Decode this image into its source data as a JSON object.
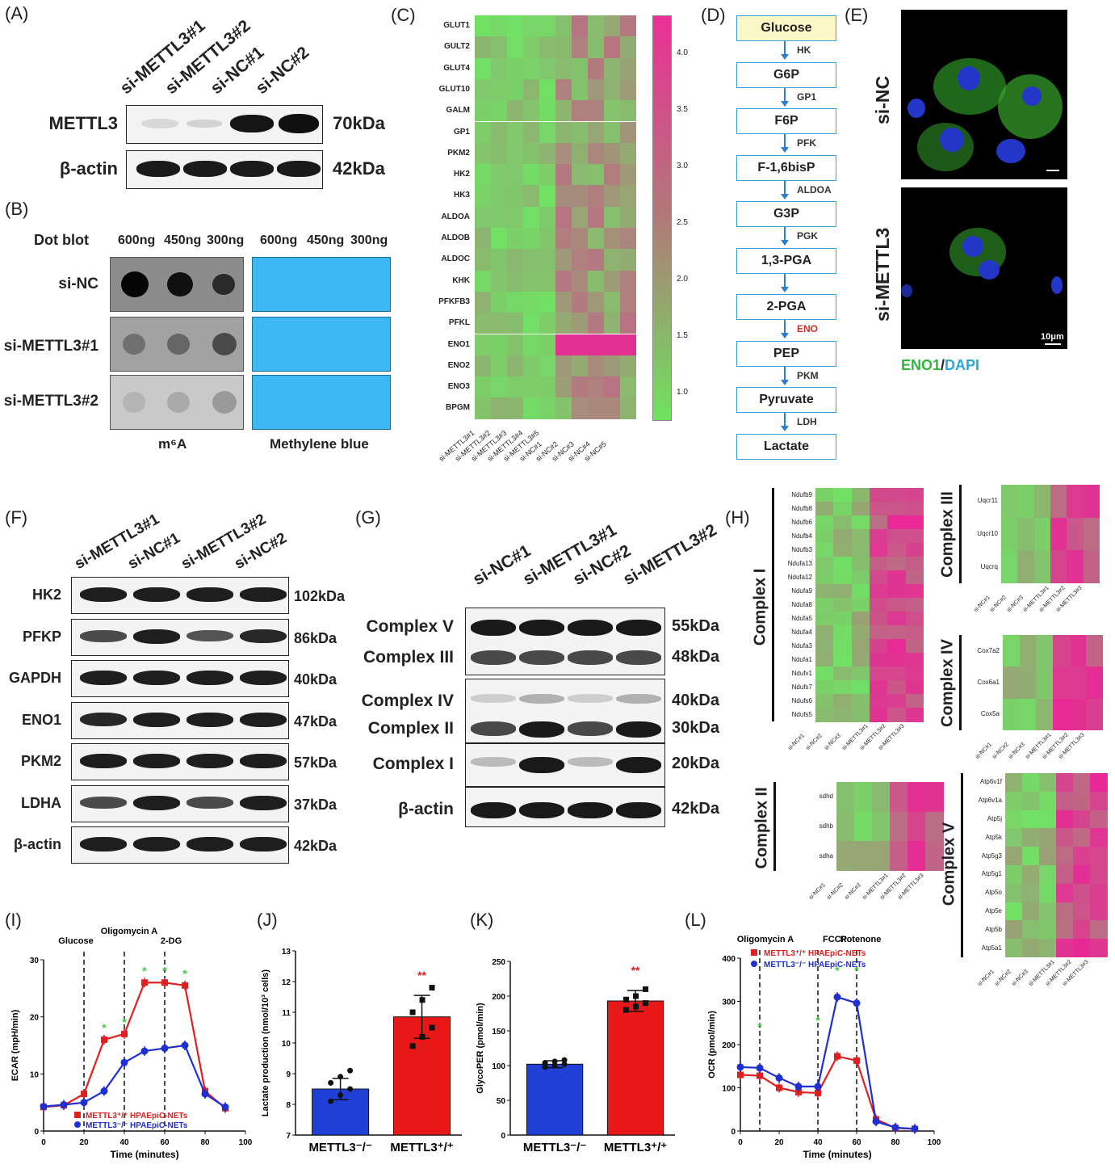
{
  "panels": {
    "A": {
      "label": "(A)",
      "lanes": [
        "si-METTL3#1",
        "si-METTL3#2",
        "si-NC#1",
        "si-NC#2"
      ],
      "rows": [
        {
          "name": "METTL3",
          "mass": "70kDa"
        },
        {
          "name": "β-actin",
          "mass": "42kDa"
        }
      ]
    },
    "B": {
      "label": "(B)",
      "title": "Dot blot",
      "amounts": [
        "600ng",
        "450ng",
        "300ng"
      ],
      "rows": [
        "si-NC",
        "si-METTL3#1",
        "si-METTL3#2"
      ],
      "caption_left": "m⁶A",
      "caption_right": "Methylene blue"
    },
    "C": {
      "label": "(C)",
      "genes": [
        "GLUT1",
        "GULT2",
        "GLUT4",
        "GLUT10",
        "GALM",
        "GP1",
        "PKM2",
        "HK2",
        "HK3",
        "ALDOA",
        "ALDOB",
        "ALDOC",
        "KHK",
        "PFKFB3",
        "PFKL",
        "ENO1",
        "ENO2",
        "ENO3",
        "BPGM"
      ],
      "samples": [
        "si-METTL3#1",
        "si-METTL3#2",
        "si-METTL3#3",
        "si-METTL3#4",
        "si-METTL3#5",
        "si-NC#1",
        "si-NC#2",
        "si-NC#3",
        "si-NC#4",
        "si-NC#5"
      ],
      "colorbar_ticks": [
        "4.0",
        "3.5",
        "3.0",
        "2.5",
        "2.0",
        "1.5",
        "1.0"
      ]
    },
    "D": {
      "label": "(D)",
      "steps": [
        "Glucose",
        "G6P",
        "F6P",
        "F-1,6bisP",
        "G3P",
        "1,3-PGA",
        "2-PGA",
        "PEP",
        "Pyruvate",
        "Lactate"
      ],
      "enzymes": [
        "HK",
        "GP1",
        "PFK",
        "ALDOA",
        "PGK",
        "ENO",
        "PKM",
        "LDH"
      ]
    },
    "E": {
      "label": "(E)",
      "rows": [
        "si-NC",
        "si-METTL3"
      ],
      "scale": "10μm",
      "stain1": "ENO1",
      "sep": "/",
      "stain2": "DAPI"
    },
    "F": {
      "label": "(F)",
      "lanes": [
        "si-METTL3#1",
        "si-NC#1",
        "si-METTL3#2",
        "si-NC#2"
      ],
      "rows": [
        {
          "name": "HK2",
          "mass": "102kDa"
        },
        {
          "name": "PFKP",
          "mass": "86kDa"
        },
        {
          "name": "GAPDH",
          "mass": "40kDa"
        },
        {
          "name": "ENO1",
          "mass": "47kDa"
        },
        {
          "name": "PKM2",
          "mass": "57kDa"
        },
        {
          "name": "LDHA",
          "mass": "37kDa"
        },
        {
          "name": "β-actin",
          "mass": "42kDa"
        }
      ]
    },
    "G": {
      "label": "(G)",
      "lanes": [
        "si-NC#1",
        "si-METTL3#1",
        "si-NC#2",
        "si-METTL3#2"
      ],
      "rows": [
        {
          "name": "Complex  V",
          "mass": "55kDa"
        },
        {
          "name": "Complex III",
          "mass": "48kDa"
        },
        {
          "name": "Complex IV",
          "mass": "40kDa"
        },
        {
          "name": "Complex  II",
          "mass": "30kDa"
        },
        {
          "name": "Complex  I",
          "mass": "20kDa"
        },
        {
          "name": "β-actin",
          "mass": "42kDa"
        }
      ]
    },
    "H": {
      "label": "(H)",
      "complex_I": {
        "title": "Complex I",
        "genes": [
          "Ndufb9",
          "Ndufb8",
          "Ndufb6",
          "Ndufb4",
          "Ndufb3",
          "Ndufa13",
          "Ndufa12",
          "Ndufa9",
          "Ndufa8",
          "Ndufa5",
          "Ndufa4",
          "Ndufa3",
          "Ndufa1",
          "Ndufv1",
          "Ndufs7",
          "Ndufs6",
          "Ndufs5"
        ]
      },
      "complex_II": {
        "title": "Complex II",
        "genes": [
          "sdhd",
          "sdhb",
          "sdha"
        ]
      },
      "complex_III": {
        "title": "Complex III",
        "genes": [
          "Uqcr11",
          "Uqcr10",
          "Uqcrq"
        ]
      },
      "complex_IV": {
        "title": "Complex IV",
        "genes": [
          "Cox7a2",
          "Cox6a1",
          "Cox5a"
        ]
      },
      "complex_V": {
        "title": "Complex V",
        "genes": [
          "Atp6v1f",
          "Atp6v1a",
          "Atp5j",
          "Atp5k",
          "Atp5g3",
          "Atp5g1",
          "Atp5o",
          "Atp5e",
          "Atp5b",
          "Atp5a1"
        ]
      },
      "samples": [
        "si-NC#1",
        "si-NC#2",
        "si-NC#3",
        "si-METTL3#1",
        "si-METTL3#2",
        "si-METTL3#3"
      ]
    },
    "I": {
      "label": "(I)",
      "markers": [
        "Glucose",
        "Oligomycin A",
        "2-DG"
      ]
    },
    "J": {
      "label": "(J)"
    },
    "K": {
      "label": "(K)"
    },
    "L": {
      "label": "(L)",
      "markers": [
        "Oligomycin A",
        "FCCP",
        "Rotenone"
      ]
    }
  },
  "chart_data": [
    {
      "panel": "I",
      "type": "line",
      "x": [
        0,
        10,
        20,
        30,
        40,
        50,
        60,
        70,
        80,
        90
      ],
      "series": [
        {
          "name": "METTL3+/+ HPAEpiC-NETs",
          "color": "#e02020",
          "values": [
            4.2,
            4.5,
            6.5,
            16,
            17,
            26,
            26,
            25.5,
            7,
            4
          ]
        },
        {
          "name": "METTL3-/- HPAEpiC-NETs",
          "color": "#1f2fd0",
          "values": [
            4.3,
            4.6,
            5,
            7,
            12,
            14,
            14.5,
            15,
            6.5,
            4.2
          ]
        }
      ],
      "xlabel": "Time (minutes)",
      "ylabel": "ECAR (mpH/min)",
      "xlim": [
        0,
        100
      ],
      "ylim": [
        0,
        30
      ],
      "xticks": [
        "0",
        "20",
        "40",
        "60",
        "80",
        "100"
      ],
      "yticks": [
        "0",
        "10",
        "20",
        "30"
      ],
      "vlines": [
        20,
        40,
        60
      ],
      "sig": "*",
      "legend": [
        "METTL3⁺/⁺ HPAEpiC-NETs",
        "METTL3⁻/⁻ HPAEpiC-NETs"
      ]
    },
    {
      "panel": "J",
      "type": "bar",
      "categories": [
        "METTL3-/-",
        "METTL3+/+"
      ],
      "cat_labels": [
        "METTL3⁻/⁻",
        "METTL3⁺/⁺"
      ],
      "values": [
        8.5,
        10.85
      ],
      "errors": [
        0.35,
        0.7
      ],
      "colors": [
        "#1f3fd6",
        "#e81818"
      ],
      "points": [
        [
          8.1,
          8.3,
          8.5,
          8.7,
          8.9,
          9.1
        ],
        [
          9.9,
          10.2,
          10.5,
          11.0,
          11.4,
          11.8
        ]
      ],
      "ylabel": "Lactate production (nmol/10³ cells)",
      "ylim": [
        7,
        13
      ],
      "yticks": [
        "7",
        "8",
        "9",
        "10",
        "11",
        "12",
        "13"
      ],
      "sig": "**"
    },
    {
      "panel": "K",
      "type": "bar",
      "categories": [
        "METTL3-/-",
        "METTL3+/+"
      ],
      "cat_labels": [
        "METTL3⁻/⁻",
        "METTL3⁺/⁺"
      ],
      "values": [
        102,
        193
      ],
      "errors": [
        5,
        15
      ],
      "colors": [
        "#1f3fd6",
        "#e81818"
      ],
      "points": [
        [
          98,
          100,
          102,
          104,
          106,
          108
        ],
        [
          180,
          185,
          190,
          195,
          200,
          210
        ]
      ],
      "ylabel": "GlycoPER (pmol/min)",
      "ylim": [
        0,
        250
      ],
      "yticks": [
        "0",
        "50",
        "100",
        "150",
        "200",
        "250"
      ],
      "sig": "**"
    },
    {
      "panel": "L",
      "type": "line",
      "x": [
        0,
        10,
        20,
        30,
        40,
        50,
        60,
        70,
        80,
        90
      ],
      "series": [
        {
          "name": "METTL3+/+ HPAEpiC-NETs",
          "color": "#e02020",
          "values": [
            130,
            128,
            100,
            90,
            88,
            173,
            163,
            27,
            7,
            5
          ]
        },
        {
          "name": "METTL3-/- HPAEpiC-NETs",
          "color": "#1f2fd0",
          "values": [
            148,
            146,
            123,
            103,
            103,
            310,
            296,
            22,
            8,
            5
          ]
        }
      ],
      "xlabel": "Time (minutes)",
      "ylabel": "OCR (pmol/min)",
      "xlim": [
        0,
        100
      ],
      "ylim": [
        0,
        400
      ],
      "xticks": [
        "0",
        "20",
        "40",
        "60",
        "80",
        "100"
      ],
      "yticks": [
        "0",
        "100",
        "200",
        "300",
        "400"
      ],
      "vlines": [
        10,
        40,
        60
      ],
      "sig": "*",
      "legend": [
        "METTL3⁺/⁺ HPAEpiC-NETs",
        "METTL3⁻/⁻ HPAEpiC-NETs"
      ]
    }
  ]
}
